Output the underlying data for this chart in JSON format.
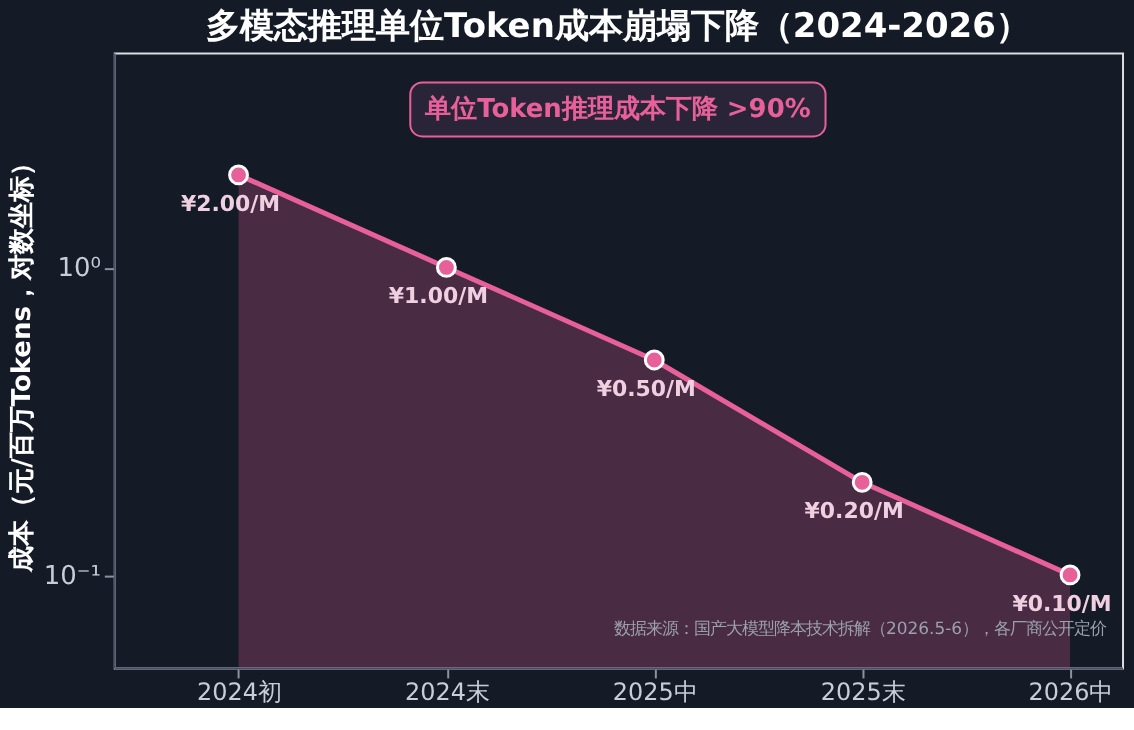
{
  "chart_data": {
    "type": "area",
    "title": "多模态推理单位Token成本崩塌下降（2024-2026）",
    "ylabel": "成本（元/百万Tokens，对数坐标）",
    "categories": [
      "2024初",
      "2024末",
      "2025中",
      "2025末",
      "2026中"
    ],
    "series": [
      {
        "color": "#e8609a",
        "values": [
          2.0,
          1.0,
          0.5,
          0.2,
          0.1
        ]
      }
    ],
    "value_labels": [
      "¥2.00/M",
      "¥1.00/M",
      "¥0.50/M",
      "¥0.20/M",
      "¥0.10/M"
    ],
    "log": "y",
    "ylim": [
      0.05,
      5
    ],
    "yticks": [
      {
        "value": 1,
        "label": "10⁰"
      },
      {
        "value": 0.1,
        "label": "10⁻¹"
      }
    ],
    "marker": "circle",
    "line_style": "solid",
    "grid": false,
    "annotations": [
      "单位Token推理成本下降 >90%",
      "数据来源：国产大模型降本技术拆解（2026.5-6），各厂商公开定价"
    ]
  }
}
